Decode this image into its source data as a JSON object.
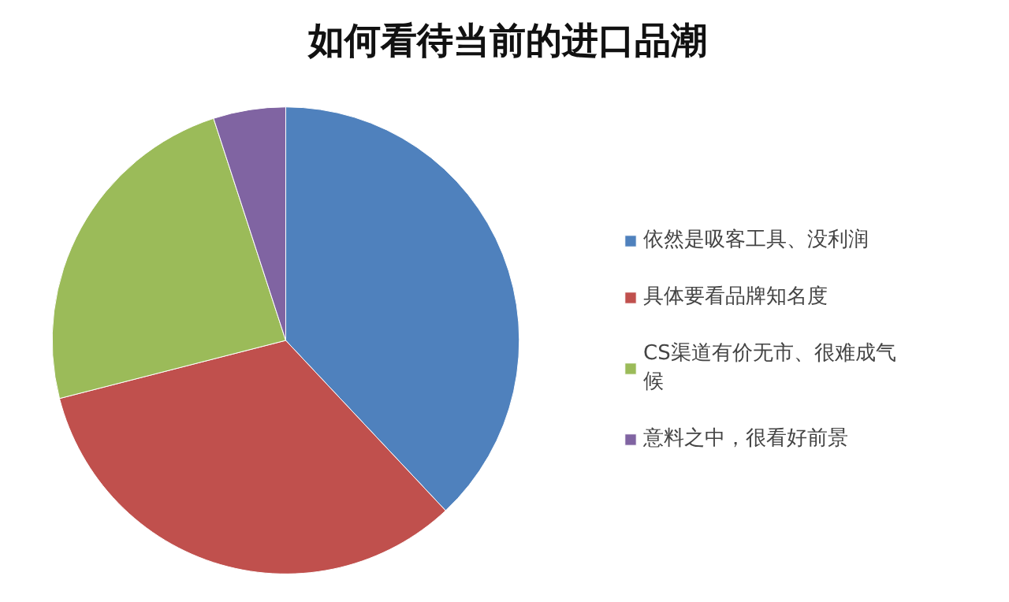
{
  "chart_data": {
    "type": "pie",
    "title": "如何看待当前的进口品潮",
    "categories": [
      "依然是吸客工具、没利润",
      "具体要看品牌知名度",
      "CS渠道有价无市、很难成气候",
      "意料之中，很看好前景"
    ],
    "values": [
      38,
      33,
      24,
      5
    ],
    "colors": [
      "#4f81bd",
      "#c0504d",
      "#9bbb59",
      "#8064a2"
    ],
    "legend": "right"
  }
}
